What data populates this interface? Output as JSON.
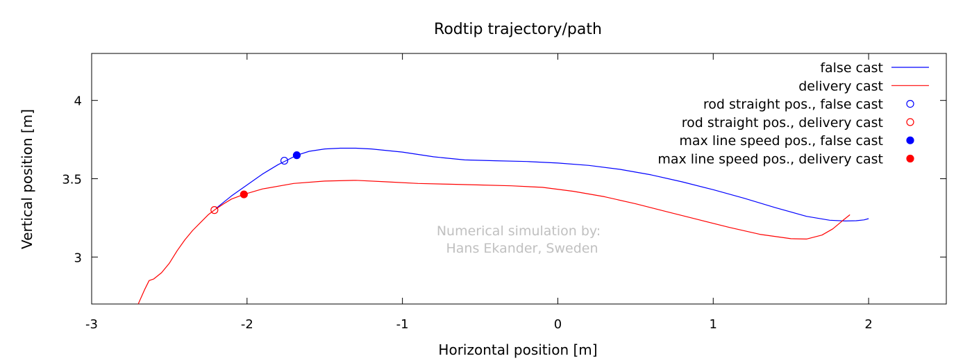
{
  "chart_data": {
    "type": "line",
    "title": "Rodtip trajectory/path",
    "xlabel": "Horizontal position [m]",
    "ylabel": "Vertical position [m]",
    "xlim": [
      -3,
      2.5
    ],
    "ylim": [
      2.7,
      4.3
    ],
    "xticks": [
      -3,
      -2,
      -1,
      0,
      1,
      2
    ],
    "xtick_labels": [
      "-3",
      "-2",
      "-1",
      "0",
      "1",
      "2"
    ],
    "yticks": [
      3,
      3.5,
      4
    ],
    "ytick_labels": [
      "3",
      "3.5",
      "4"
    ],
    "grid": false,
    "legend_position": "top-right",
    "annotation": [
      "Numerical simulation by:",
      "Hans Ekander, Sweden"
    ],
    "series": [
      {
        "name": "false cast",
        "kind": "line",
        "color": "#0000ff",
        "x": [
          -2.2,
          -2.15,
          -2.1,
          -2.0,
          -1.9,
          -1.8,
          -1.75,
          -1.68,
          -1.6,
          -1.5,
          -1.4,
          -1.3,
          -1.2,
          -1.0,
          -0.8,
          -0.6,
          -0.4,
          -0.2,
          0.0,
          0.2,
          0.4,
          0.6,
          0.8,
          1.0,
          1.2,
          1.4,
          1.6,
          1.75,
          1.85,
          1.92,
          1.97,
          2.0
        ],
        "y": [
          3.31,
          3.35,
          3.39,
          3.46,
          3.53,
          3.59,
          3.615,
          3.65,
          3.675,
          3.69,
          3.695,
          3.695,
          3.69,
          3.67,
          3.64,
          3.62,
          3.615,
          3.61,
          3.6,
          3.585,
          3.56,
          3.525,
          3.48,
          3.43,
          3.375,
          3.315,
          3.26,
          3.235,
          3.23,
          3.232,
          3.237,
          3.245
        ]
      },
      {
        "name": "delivery cast",
        "kind": "line",
        "color": "#ff0000",
        "x": [
          -2.7,
          -2.66,
          -2.63,
          -2.6,
          -2.55,
          -2.5,
          -2.45,
          -2.4,
          -2.35,
          -2.3,
          -2.25,
          -2.21,
          -2.15,
          -2.1,
          -2.02,
          -1.9,
          -1.7,
          -1.5,
          -1.3,
          -1.1,
          -0.9,
          -0.7,
          -0.5,
          -0.3,
          -0.1,
          0.1,
          0.3,
          0.5,
          0.7,
          0.9,
          1.1,
          1.3,
          1.5,
          1.6,
          1.7,
          1.77,
          1.83,
          1.88
        ],
        "y": [
          2.7,
          2.79,
          2.85,
          2.86,
          2.9,
          2.96,
          3.04,
          3.11,
          3.17,
          3.22,
          3.27,
          3.3,
          3.34,
          3.37,
          3.4,
          3.435,
          3.47,
          3.485,
          3.49,
          3.48,
          3.47,
          3.465,
          3.46,
          3.455,
          3.445,
          3.42,
          3.385,
          3.34,
          3.29,
          3.24,
          3.19,
          3.145,
          3.117,
          3.115,
          3.14,
          3.18,
          3.23,
          3.27
        ]
      },
      {
        "name": "rod straight pos., false cast",
        "kind": "point",
        "marker": "open-circle",
        "color": "#0000ff",
        "x": [
          -1.76
        ],
        "y": [
          3.615
        ]
      },
      {
        "name": "rod straight pos., delivery cast",
        "kind": "point",
        "marker": "open-circle",
        "color": "#ff0000",
        "x": [
          -2.21
        ],
        "y": [
          3.3
        ]
      },
      {
        "name": "max line speed pos., false cast",
        "kind": "point",
        "marker": "filled-circle",
        "color": "#0000ff",
        "x": [
          -1.68
        ],
        "y": [
          3.65
        ]
      },
      {
        "name": "max line speed pos., delivery cast",
        "kind": "point",
        "marker": "filled-circle",
        "color": "#ff0000",
        "x": [
          -2.02
        ],
        "y": [
          3.4
        ]
      }
    ]
  }
}
